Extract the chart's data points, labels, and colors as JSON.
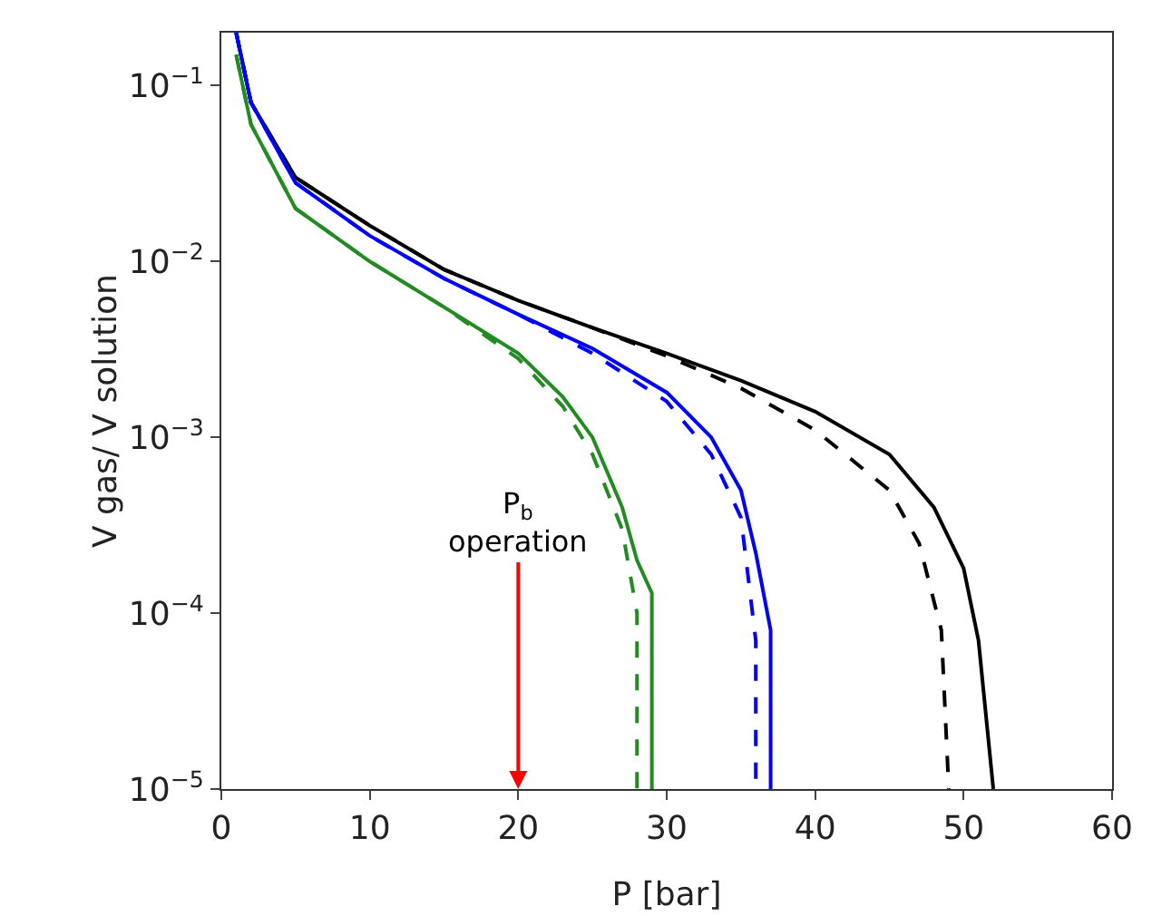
{
  "chart_data": {
    "type": "line",
    "xlabel": "P [bar]",
    "ylabel": "V gas/ V solution",
    "log": "y",
    "grid": false,
    "marker": "none",
    "xlim": [
      0,
      60
    ],
    "xticks": [
      0,
      10,
      20,
      30,
      40,
      50,
      60
    ],
    "ylim": [
      1e-05,
      0.2
    ],
    "yticks": [
      {
        "value": 0.1,
        "label": "10$^{−1}$"
      },
      {
        "value": 0.01,
        "label": "10$^{−2}$"
      },
      {
        "value": 0.001,
        "label": "10$^{−3}$"
      },
      {
        "value": 0.0001,
        "label": "10$^{−4}$"
      },
      {
        "value": 1e-05,
        "label": "10$^{−5}$"
      }
    ],
    "annotations": [
      "P$_{b}$\noperation"
    ],
    "series": [
      {
        "color": "#000000",
        "line_style": "solid",
        "x": [
          1,
          2,
          5,
          10,
          15,
          20,
          25,
          30,
          35,
          40,
          45,
          48,
          50,
          51,
          52
        ],
        "values": [
          0.2,
          0.08,
          0.03,
          0.016,
          0.009,
          0.006,
          0.0042,
          0.003,
          0.0021,
          0.0014,
          0.0008,
          0.0004,
          0.00018,
          7e-05,
          1e-05
        ]
      },
      {
        "color": "#000000",
        "line_style": "dashed",
        "x": [
          1,
          2,
          5,
          10,
          15,
          20,
          25,
          30,
          35,
          40,
          45,
          47,
          48.5,
          49
        ],
        "values": [
          0.2,
          0.08,
          0.03,
          0.016,
          0.009,
          0.006,
          0.0042,
          0.0029,
          0.0019,
          0.0011,
          0.0005,
          0.00025,
          8e-05,
          1e-05
        ]
      },
      {
        "color": "#0000ff",
        "line_style": "solid",
        "x": [
          1,
          2,
          5,
          10,
          15,
          20,
          25,
          30,
          33,
          35,
          36,
          37,
          37
        ],
        "values": [
          0.2,
          0.08,
          0.028,
          0.014,
          0.008,
          0.005,
          0.0032,
          0.0018,
          0.001,
          0.0005,
          0.00022,
          8e-05,
          1e-05
        ]
      },
      {
        "color": "#0000ff",
        "line_style": "dashed",
        "x": [
          1,
          2,
          5,
          10,
          15,
          20,
          25,
          30,
          33,
          35,
          36,
          36
        ],
        "values": [
          0.2,
          0.08,
          0.028,
          0.014,
          0.008,
          0.005,
          0.003,
          0.0016,
          0.0008,
          0.00035,
          7e-05,
          1e-05
        ]
      },
      {
        "color": "#228b22",
        "line_style": "solid",
        "x": [
          1,
          2,
          5,
          10,
          15,
          20,
          23,
          25,
          27,
          28,
          29,
          29
        ],
        "values": [
          0.15,
          0.06,
          0.02,
          0.01,
          0.0055,
          0.003,
          0.0017,
          0.001,
          0.0004,
          0.0002,
          0.00013,
          1e-05
        ]
      },
      {
        "color": "#228b22",
        "line_style": "dashed",
        "x": [
          1,
          2,
          5,
          10,
          15,
          20,
          23,
          25,
          27,
          28,
          28
        ],
        "values": [
          0.15,
          0.06,
          0.02,
          0.01,
          0.0055,
          0.0028,
          0.0015,
          0.0008,
          0.0003,
          0.0001,
          1e-05
        ]
      }
    ]
  }
}
